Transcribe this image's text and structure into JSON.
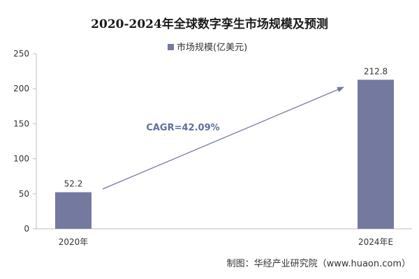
{
  "chart_data": {
    "type": "bar",
    "title": "2020-2024年全球数字孪生市场规模及预测",
    "categories": [
      "2020年",
      "2024年E"
    ],
    "series": [
      {
        "name": "市场规模(亿美元)",
        "values": [
          52.2,
          212.8
        ]
      }
    ],
    "data_labels": [
      "52.2",
      "212.8"
    ],
    "ylim": [
      0,
      250
    ],
    "yticks": [
      0,
      50,
      100,
      150,
      200,
      250
    ],
    "xlabel": "",
    "ylabel": "",
    "grid": false,
    "legend_position": "top-center",
    "annotation": "CAGR=42.09%",
    "colors": {
      "bar": "#7479a0",
      "arrow": "#7479a0",
      "annotation_text": "#5e6f9e",
      "axis": "#bfbfbf"
    }
  },
  "source_note": "制图：华经产业研究院（www.huaon.com）"
}
